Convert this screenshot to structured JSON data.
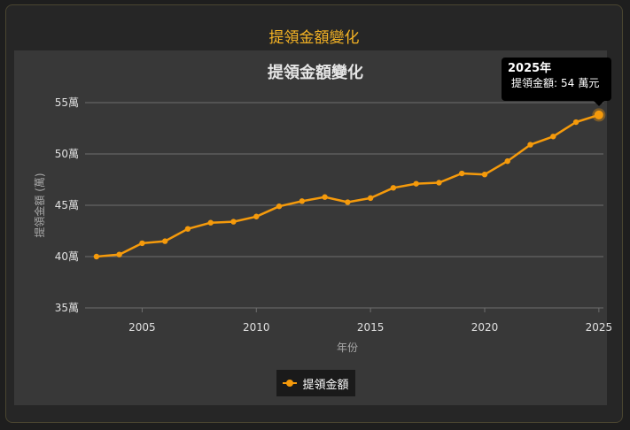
{
  "page": {
    "title": "提領金額變化"
  },
  "tooltip": {
    "year": "2025年",
    "label": "提領金額:",
    "value": "54",
    "unit": "萬元"
  },
  "legend": {
    "label": "提領金額"
  },
  "colors": {
    "accent": "#f5b324",
    "series": "#f59a0b",
    "panel": "#383838",
    "grid": "#6e6e6e"
  },
  "chart_data": {
    "type": "line",
    "title": "提領金額變化",
    "xlabel": "年份",
    "ylabel": "提領金額 (萬)",
    "ylim": [
      35,
      55
    ],
    "xlim": [
      2002.5,
      2025.2
    ],
    "y_ticks": [
      {
        "value": 35,
        "label": "35萬"
      },
      {
        "value": 40,
        "label": "40萬"
      },
      {
        "value": 45,
        "label": "45萬"
      },
      {
        "value": 50,
        "label": "50萬"
      },
      {
        "value": 55,
        "label": "55萬"
      }
    ],
    "x_ticks": [
      {
        "value": 2005,
        "label": "2005"
      },
      {
        "value": 2010,
        "label": "2010"
      },
      {
        "value": 2015,
        "label": "2015"
      },
      {
        "value": 2020,
        "label": "2020"
      },
      {
        "value": 2025,
        "label": "2025"
      }
    ],
    "grid": true,
    "legend_position": "bottom-center",
    "series": [
      {
        "name": "提領金額",
        "x": [
          2003,
          2004,
          2005,
          2006,
          2007,
          2008,
          2009,
          2010,
          2011,
          2012,
          2013,
          2014,
          2015,
          2016,
          2017,
          2018,
          2019,
          2020,
          2021,
          2022,
          2023,
          2024,
          2025
        ],
        "values": [
          40.0,
          40.2,
          41.3,
          41.5,
          42.7,
          43.3,
          43.4,
          43.9,
          44.9,
          45.4,
          45.8,
          45.3,
          45.7,
          46.7,
          47.1,
          47.2,
          48.1,
          48.0,
          49.3,
          50.9,
          51.7,
          53.1,
          53.8
        ]
      }
    ]
  }
}
